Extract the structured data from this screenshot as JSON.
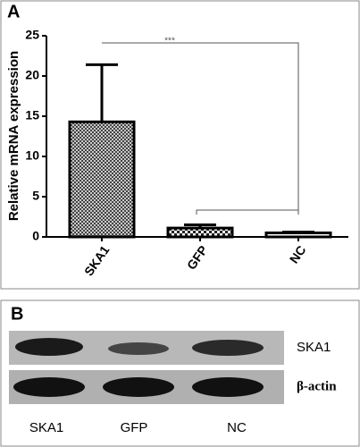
{
  "chart_data": {
    "type": "bar",
    "panel_label": "A",
    "ylabel": "Relative mRNA expression",
    "categories": [
      "SKA1",
      "GFP",
      "NC"
    ],
    "values": [
      14.3,
      1.1,
      0.5
    ],
    "errors": [
      7.1,
      0.4,
      0.1
    ],
    "ylim": [
      0,
      25
    ],
    "yticks": [
      0,
      5,
      10,
      15,
      20,
      25
    ],
    "annotation": "***"
  },
  "blot": {
    "panel_label": "B",
    "rows": [
      "SKA1",
      "β-actin"
    ],
    "lanes": [
      "SKA1",
      "GFP",
      "NC"
    ]
  }
}
